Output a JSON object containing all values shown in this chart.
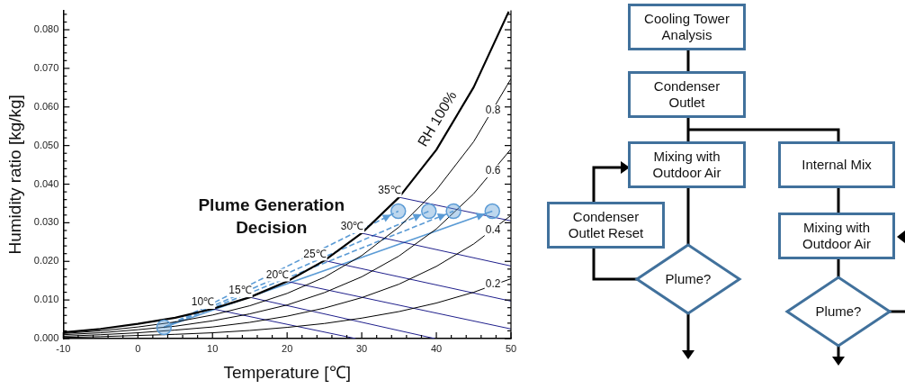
{
  "chart_data": [
    {
      "type": "line",
      "xlabel": "Temperature [℃]",
      "ylabel": "Humidity ratio [kg/kg]",
      "marker": "none",
      "xlim": [
        -10,
        50
      ],
      "ylim": [
        0,
        0.085
      ],
      "xticks": [
        -10,
        {
          "value": -8,
          "label": null
        },
        {
          "value": -6,
          "label": null
        },
        {
          "value": -4,
          "label": null
        },
        {
          "value": -2,
          "label": null
        },
        0,
        {
          "value": 2,
          "label": null
        },
        {
          "value": 4,
          "label": null
        },
        {
          "value": 6,
          "label": null
        },
        {
          "value": 8,
          "label": null
        },
        10,
        {
          "value": 12,
          "label": null
        },
        {
          "value": 14,
          "label": null
        },
        {
          "value": 16,
          "label": null
        },
        {
          "value": 18,
          "label": null
        },
        20,
        {
          "value": 22,
          "label": null
        },
        {
          "value": 24,
          "label": null
        },
        {
          "value": 26,
          "label": null
        },
        {
          "value": 28,
          "label": null
        },
        30,
        {
          "value": 32,
          "label": null
        },
        {
          "value": 34,
          "label": null
        },
        {
          "value": 36,
          "label": null
        },
        {
          "value": 38,
          "label": null
        },
        40,
        {
          "value": 42,
          "label": null
        },
        {
          "value": 44,
          "label": null
        },
        {
          "value": 46,
          "label": null
        },
        {
          "value": 48,
          "label": null
        },
        50
      ],
      "yticks": [
        {
          "value": 0,
          "label": "0.000"
        },
        {
          "value": 0.002,
          "label": null
        },
        {
          "value": 0.004,
          "label": null
        },
        {
          "value": 0.006,
          "label": null
        },
        {
          "value": 0.008,
          "label": null
        },
        {
          "value": 0.01,
          "label": "0.010"
        },
        {
          "value": 0.012,
          "label": null
        },
        {
          "value": 0.014,
          "label": null
        },
        {
          "value": 0.016,
          "label": null
        },
        {
          "value": 0.018,
          "label": null
        },
        {
          "value": 0.02,
          "label": "0.020"
        },
        {
          "value": 0.022,
          "label": null
        },
        {
          "value": 0.024,
          "label": null
        },
        {
          "value": 0.026,
          "label": null
        },
        {
          "value": 0.028,
          "label": null
        },
        {
          "value": 0.03,
          "label": "0.030"
        },
        {
          "value": 0.032,
          "label": null
        },
        {
          "value": 0.034,
          "label": null
        },
        {
          "value": 0.036,
          "label": null
        },
        {
          "value": 0.038,
          "label": null
        },
        {
          "value": 0.04,
          "label": "0.040"
        },
        {
          "value": 0.042,
          "label": null
        },
        {
          "value": 0.044,
          "label": null
        },
        {
          "value": 0.046,
          "label": null
        },
        {
          "value": 0.048,
          "label": null
        },
        {
          "value": 0.05,
          "label": "0.050"
        },
        {
          "value": 0.052,
          "label": null
        },
        {
          "value": 0.054,
          "label": null
        },
        {
          "value": 0.056,
          "label": null
        },
        {
          "value": 0.058,
          "label": null
        },
        {
          "value": 0.06,
          "label": "0.060"
        },
        {
          "value": 0.062,
          "label": null
        },
        {
          "value": 0.064,
          "label": null
        },
        {
          "value": 0.066,
          "label": null
        },
        {
          "value": 0.068,
          "label": null
        },
        {
          "value": 0.07,
          "label": "0.070"
        },
        {
          "value": 0.072,
          "label": null
        },
        {
          "value": 0.074,
          "label": null
        },
        {
          "value": 0.076,
          "label": null
        },
        {
          "value": 0.078,
          "label": null
        },
        {
          "value": 0.08,
          "label": "0.080"
        },
        {
          "value": 0.082,
          "label": null
        },
        {
          "value": 0.084,
          "label": null
        }
      ],
      "series": [
        {
          "color": "#000000",
          "x": [
            -10,
            -5,
            0,
            5,
            10,
            15,
            20,
            25,
            30,
            35,
            40,
            45,
            49.7
          ],
          "values": [
            0.0016,
            0.0025,
            0.0038,
            0.0054,
            0.0077,
            0.0107,
            0.0148,
            0.0202,
            0.0273,
            0.0366,
            0.0489,
            0.0651,
            0.0847
          ]
        },
        {
          "color": "#000000",
          "x": [
            -10,
            -5,
            0,
            5,
            10,
            15,
            20,
            25,
            30,
            35,
            40,
            45,
            50
          ],
          "values": [
            0.0013,
            0.002,
            0.003,
            0.0043,
            0.0061,
            0.0085,
            0.0117,
            0.0159,
            0.0215,
            0.0289,
            0.0385,
            0.051,
            0.0673
          ]
        },
        {
          "color": "#000000",
          "x": [
            -10,
            -5,
            0,
            5,
            10,
            15,
            20,
            25,
            30,
            35,
            40,
            45,
            50
          ],
          "values": [
            0.001,
            0.0015,
            0.0023,
            0.0032,
            0.0046,
            0.0064,
            0.0087,
            0.0119,
            0.016,
            0.0214,
            0.0284,
            0.0375,
            0.0491
          ]
        },
        {
          "color": "#000000",
          "x": [
            -10,
            -5,
            0,
            5,
            10,
            15,
            20,
            25,
            30,
            35,
            40,
            45,
            50
          ],
          "values": [
            0.0006,
            0.001,
            0.0015,
            0.0022,
            0.003,
            0.0042,
            0.0058,
            0.0079,
            0.0106,
            0.0141,
            0.0187,
            0.0245,
            0.0319
          ]
        },
        {
          "color": "#000000",
          "x": [
            -10,
            -5,
            0,
            5,
            10,
            15,
            20,
            25,
            30,
            35,
            40,
            45,
            50
          ],
          "values": [
            0.0003,
            0.0005,
            0.0008,
            0.0011,
            0.0015,
            0.0021,
            0.0029,
            0.0039,
            0.0053,
            0.007,
            0.0092,
            0.012,
            0.0155
          ]
        },
        {
          "color": "#20208c",
          "x": [
            10,
            29.2
          ],
          "values": [
            0.0077,
            0
          ]
        },
        {
          "color": "#20208c",
          "x": [
            15,
            39.8
          ],
          "values": [
            0.0107,
            0
          ]
        },
        {
          "color": "#20208c",
          "x": [
            20,
            50
          ],
          "values": [
            0.0148,
            0.0025
          ]
        },
        {
          "color": "#20208c",
          "x": [
            25,
            50
          ],
          "values": [
            0.0202,
            0.0097
          ]
        },
        {
          "color": "#20208c",
          "x": [
            30,
            50
          ],
          "values": [
            0.0273,
            0.0188
          ]
        },
        {
          "color": "#20208c",
          "x": [
            35,
            50
          ],
          "values": [
            0.0366,
            0.0305
          ]
        },
        {
          "color": "#5b9bd5",
          "line_style": "dashed",
          "x": [
            3.5,
            34.9
          ],
          "values": [
            0.0029,
            0.033
          ]
        },
        {
          "color": "#5b9bd5",
          "line_style": "dashed",
          "x": [
            3.5,
            39
          ],
          "values": [
            0.0029,
            0.033
          ]
        },
        {
          "color": "#5b9bd5",
          "line_style": "dashed",
          "x": [
            3.5,
            42.3
          ],
          "values": [
            0.0029,
            0.033
          ]
        },
        {
          "color": "#5b9bd5",
          "line_style": "solid",
          "x": [
            3.5,
            47.5
          ],
          "values": [
            0.0029,
            0.033
          ]
        },
        {
          "type": "scatter",
          "marker": "circle",
          "color": "#5b9bd5",
          "x": [
            3.5,
            34.9,
            39,
            42.3,
            47.5
          ],
          "values": [
            0.0029,
            0.033,
            0.033,
            0.033,
            0.033
          ]
        }
      ],
      "annotations": [
        {
          "text": "RH 100%",
          "x": 40,
          "y": 0.0489
        },
        {
          "text": "0.8",
          "x": 47.6,
          "y": 0.059
        },
        {
          "text": "0.6",
          "x": 47.6,
          "y": 0.0434
        },
        {
          "text": "0.4",
          "x": 47.6,
          "y": 0.028
        },
        {
          "text": "0.2",
          "x": 47.6,
          "y": 0.014
        },
        {
          "text": "10℃",
          "x": 10,
          "y": 0.0077
        },
        {
          "text": "15℃",
          "x": 15,
          "y": 0.0107
        },
        {
          "text": "20℃",
          "x": 20,
          "y": 0.0148
        },
        {
          "text": "25℃",
          "x": 25,
          "y": 0.0202
        },
        {
          "text": "30℃",
          "x": 30,
          "y": 0.0273
        },
        {
          "text": "35℃",
          "x": 35,
          "y": 0.0366
        },
        "Plume Generation Decision"
      ]
    },
    {
      "type": "other",
      "annotations": [
        "Cooling Tower Analysis",
        "Condenser Outlet",
        "Mixing with Outdoor Air",
        "Internal Mix",
        "Condenser Outlet Reset",
        "Mixing with Outdoor Air",
        "Plume?",
        "Plume?"
      ]
    }
  ]
}
